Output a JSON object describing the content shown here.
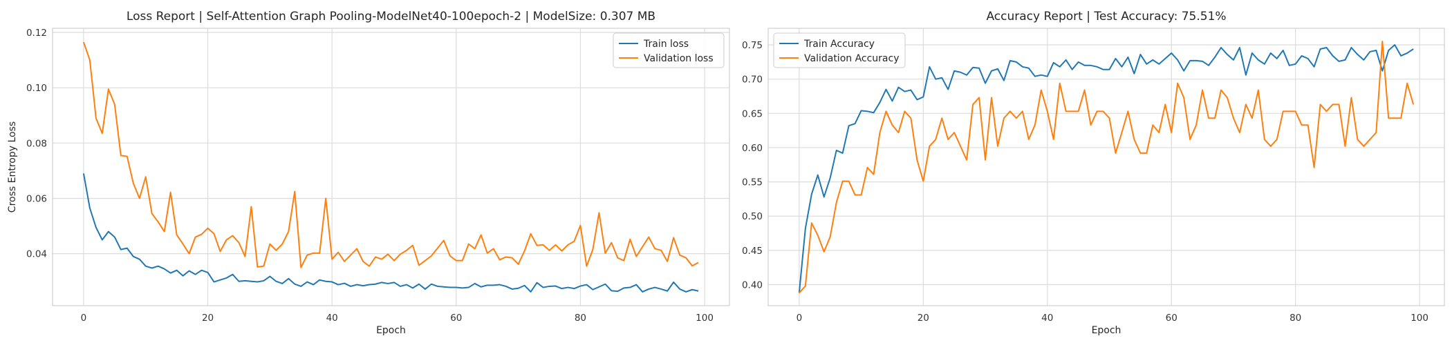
{
  "colors": {
    "train": "#1f77b4",
    "validation": "#ff7f0e",
    "grid": "#dcdcdc"
  },
  "chart_data": [
    {
      "type": "line",
      "title": "Loss Report | Self-Attention Graph Pooling-ModelNet40-100epoch-2 | ModelSize: 0.307 MB",
      "xlabel": "Epoch",
      "ylabel": "Cross Entropy Loss",
      "xlim": [
        -5,
        104
      ],
      "ylim": [
        0.0212,
        0.1215
      ],
      "xticks": [
        0,
        20,
        40,
        60,
        80,
        100
      ],
      "xtick_labels": [
        "0",
        "20",
        "40",
        "60",
        "80",
        "100"
      ],
      "yticks": [
        0.04,
        0.06,
        0.08,
        0.1,
        0.12
      ],
      "ytick_labels": [
        "0.04",
        "0.06",
        "0.08",
        "0.10",
        "0.12"
      ],
      "grid": true,
      "legend_position": "top-right",
      "series": [
        {
          "name": "Train loss",
          "color": "#1f77b4",
          "x": [
            0,
            1,
            2,
            3,
            4,
            5,
            6,
            7,
            8,
            9,
            10,
            11,
            12,
            13,
            14,
            15,
            16,
            17,
            18,
            19,
            20,
            21,
            22,
            23,
            24,
            25,
            26,
            27,
            28,
            29,
            30,
            31,
            32,
            33,
            34,
            35,
            36,
            37,
            38,
            39,
            40,
            41,
            42,
            43,
            44,
            45,
            46,
            47,
            48,
            49,
            50,
            51,
            52,
            53,
            54,
            55,
            56,
            57,
            58,
            59,
            60,
            61,
            62,
            63,
            64,
            65,
            66,
            67,
            68,
            69,
            70,
            71,
            72,
            73,
            74,
            75,
            76,
            77,
            78,
            79,
            80,
            81,
            82,
            83,
            84,
            85,
            86,
            87,
            88,
            89,
            90,
            91,
            92,
            93,
            94,
            95,
            96,
            97,
            98,
            99
          ],
          "values": [
            0.069,
            0.0565,
            0.0495,
            0.045,
            0.048,
            0.046,
            0.0415,
            0.042,
            0.039,
            0.038,
            0.0355,
            0.0348,
            0.0355,
            0.0345,
            0.033,
            0.034,
            0.032,
            0.0338,
            0.0325,
            0.034,
            0.0332,
            0.0298,
            0.0305,
            0.0312,
            0.0325,
            0.03,
            0.0302,
            0.03,
            0.0298,
            0.0302,
            0.0318,
            0.03,
            0.0292,
            0.031,
            0.029,
            0.0282,
            0.0298,
            0.0288,
            0.0305,
            0.03,
            0.0298,
            0.0288,
            0.0293,
            0.0282,
            0.0288,
            0.0284,
            0.0288,
            0.029,
            0.0296,
            0.0292,
            0.0296,
            0.0282,
            0.0288,
            0.0276,
            0.029,
            0.0272,
            0.029,
            0.0282,
            0.028,
            0.0278,
            0.0278,
            0.0276,
            0.0278,
            0.0292,
            0.028,
            0.0286,
            0.0286,
            0.0288,
            0.0282,
            0.0272,
            0.0275,
            0.0285,
            0.0262,
            0.0295,
            0.0278,
            0.0282,
            0.0283,
            0.0274,
            0.0278,
            0.0274,
            0.0283,
            0.0288,
            0.027,
            0.028,
            0.029,
            0.0266,
            0.0264,
            0.0276,
            0.0278,
            0.0288,
            0.0262,
            0.0272,
            0.0278,
            0.0272,
            0.0265,
            0.0297,
            0.0272,
            0.0262,
            0.027,
            0.0265
          ]
        },
        {
          "name": "Validation loss",
          "color": "#ff7f0e",
          "x": [
            0,
            1,
            2,
            3,
            4,
            5,
            6,
            7,
            8,
            9,
            10,
            11,
            12,
            13,
            14,
            15,
            16,
            17,
            18,
            19,
            20,
            21,
            22,
            23,
            24,
            25,
            26,
            27,
            28,
            29,
            30,
            31,
            32,
            33,
            34,
            35,
            36,
            37,
            38,
            39,
            40,
            41,
            42,
            43,
            44,
            45,
            46,
            47,
            48,
            49,
            50,
            51,
            52,
            53,
            54,
            55,
            56,
            57,
            58,
            59,
            60,
            61,
            62,
            63,
            64,
            65,
            66,
            67,
            68,
            69,
            70,
            71,
            72,
            73,
            74,
            75,
            76,
            77,
            78,
            79,
            80,
            81,
            82,
            83,
            84,
            85,
            86,
            87,
            88,
            89,
            90,
            91,
            92,
            93,
            94,
            95,
            96,
            97,
            98,
            99
          ],
          "values": [
            0.1165,
            0.11,
            0.089,
            0.0835,
            0.0995,
            0.094,
            0.0755,
            0.0752,
            0.0655,
            0.06,
            0.0678,
            0.0545,
            0.0515,
            0.048,
            0.0622,
            0.0468,
            0.0435,
            0.04,
            0.046,
            0.047,
            0.0492,
            0.0472,
            0.0408,
            0.045,
            0.0465,
            0.044,
            0.039,
            0.057,
            0.0352,
            0.0355,
            0.0435,
            0.0412,
            0.0435,
            0.048,
            0.0625,
            0.035,
            0.0395,
            0.0402,
            0.0402,
            0.06,
            0.038,
            0.0405,
            0.0372,
            0.0395,
            0.0418,
            0.0372,
            0.0355,
            0.0388,
            0.038,
            0.0398,
            0.0375,
            0.0398,
            0.0412,
            0.043,
            0.0358,
            0.0375,
            0.0392,
            0.042,
            0.0448,
            0.0392,
            0.0375,
            0.0375,
            0.0435,
            0.0418,
            0.0468,
            0.0402,
            0.0418,
            0.0378,
            0.0388,
            0.0385,
            0.0362,
            0.041,
            0.0472,
            0.043,
            0.0432,
            0.0412,
            0.0432,
            0.041,
            0.0432,
            0.0445,
            0.0502,
            0.0355,
            0.0415,
            0.0548,
            0.0402,
            0.044,
            0.0385,
            0.0375,
            0.0452,
            0.039,
            0.0425,
            0.046,
            0.0418,
            0.0412,
            0.0372,
            0.0458,
            0.0395,
            0.0385,
            0.0356,
            0.0368
          ]
        }
      ]
    },
    {
      "type": "line",
      "title": "Accuracy Report | Test Accuracy: 75.51%",
      "xlabel": "Epoch",
      "ylabel": "",
      "xlim": [
        -5,
        104
      ],
      "ylim": [
        0.3693,
        0.7742
      ],
      "xticks": [
        0,
        20,
        40,
        60,
        80,
        100
      ],
      "xtick_labels": [
        "0",
        "20",
        "40",
        "60",
        "80",
        "100"
      ],
      "yticks": [
        0.4,
        0.45,
        0.5,
        0.55,
        0.6,
        0.65,
        0.7,
        0.75
      ],
      "ytick_labels": [
        "0.40",
        "0.45",
        "0.50",
        "0.55",
        "0.60",
        "0.65",
        "0.70",
        "0.75"
      ],
      "grid": true,
      "legend_position": "top-left",
      "series": [
        {
          "name": "Train Accuracy",
          "color": "#1f77b4",
          "x": [
            0,
            1,
            2,
            3,
            4,
            5,
            6,
            7,
            8,
            9,
            10,
            11,
            12,
            13,
            14,
            15,
            16,
            17,
            18,
            19,
            20,
            21,
            22,
            23,
            24,
            25,
            26,
            27,
            28,
            29,
            30,
            31,
            32,
            33,
            34,
            35,
            36,
            37,
            38,
            39,
            40,
            41,
            42,
            43,
            44,
            45,
            46,
            47,
            48,
            49,
            50,
            51,
            52,
            53,
            54,
            55,
            56,
            57,
            58,
            59,
            60,
            61,
            62,
            63,
            64,
            65,
            66,
            67,
            68,
            69,
            70,
            71,
            72,
            73,
            74,
            75,
            76,
            77,
            78,
            79,
            80,
            81,
            82,
            83,
            84,
            85,
            86,
            87,
            88,
            89,
            90,
            91,
            92,
            93,
            94,
            95,
            96,
            97,
            98,
            99
          ],
          "values": [
            0.388,
            0.482,
            0.532,
            0.56,
            0.528,
            0.556,
            0.596,
            0.592,
            0.632,
            0.635,
            0.654,
            0.653,
            0.651,
            0.666,
            0.685,
            0.668,
            0.688,
            0.682,
            0.684,
            0.67,
            0.674,
            0.718,
            0.7,
            0.702,
            0.685,
            0.712,
            0.71,
            0.706,
            0.717,
            0.716,
            0.694,
            0.712,
            0.715,
            0.698,
            0.727,
            0.725,
            0.718,
            0.716,
            0.704,
            0.706,
            0.704,
            0.724,
            0.718,
            0.728,
            0.714,
            0.725,
            0.72,
            0.72,
            0.718,
            0.714,
            0.714,
            0.73,
            0.718,
            0.732,
            0.708,
            0.736,
            0.722,
            0.728,
            0.722,
            0.73,
            0.738,
            0.728,
            0.712,
            0.727,
            0.727,
            0.726,
            0.72,
            0.732,
            0.746,
            0.736,
            0.728,
            0.746,
            0.706,
            0.738,
            0.728,
            0.722,
            0.738,
            0.73,
            0.742,
            0.72,
            0.722,
            0.734,
            0.73,
            0.718,
            0.744,
            0.746,
            0.734,
            0.726,
            0.728,
            0.746,
            0.736,
            0.728,
            0.74,
            0.742,
            0.712,
            0.742,
            0.75,
            0.734,
            0.738,
            0.744
          ]
        },
        {
          "name": "Validation Accuracy",
          "color": "#ff7f0e",
          "x": [
            0,
            1,
            2,
            3,
            4,
            5,
            6,
            7,
            8,
            9,
            10,
            11,
            12,
            13,
            14,
            15,
            16,
            17,
            18,
            19,
            20,
            21,
            22,
            23,
            24,
            25,
            26,
            27,
            28,
            29,
            30,
            31,
            32,
            33,
            34,
            35,
            36,
            37,
            38,
            39,
            40,
            41,
            42,
            43,
            44,
            45,
            46,
            47,
            48,
            49,
            50,
            51,
            52,
            53,
            54,
            55,
            56,
            57,
            58,
            59,
            60,
            61,
            62,
            63,
            64,
            65,
            66,
            67,
            68,
            69,
            70,
            71,
            72,
            73,
            74,
            75,
            76,
            77,
            78,
            79,
            80,
            81,
            82,
            83,
            84,
            85,
            86,
            87,
            88,
            89,
            90,
            91,
            92,
            93,
            94,
            95,
            96,
            97,
            98,
            99
          ],
          "values": [
            0.388,
            0.398,
            0.49,
            0.472,
            0.448,
            0.47,
            0.52,
            0.551,
            0.551,
            0.531,
            0.531,
            0.571,
            0.561,
            0.622,
            0.653,
            0.633,
            0.622,
            0.653,
            0.643,
            0.582,
            0.551,
            0.602,
            0.612,
            0.643,
            0.612,
            0.622,
            0.602,
            0.582,
            0.663,
            0.673,
            0.582,
            0.673,
            0.602,
            0.643,
            0.653,
            0.643,
            0.653,
            0.612,
            0.633,
            0.684,
            0.653,
            0.612,
            0.694,
            0.653,
            0.653,
            0.653,
            0.684,
            0.633,
            0.653,
            0.653,
            0.643,
            0.592,
            0.622,
            0.653,
            0.612,
            0.592,
            0.592,
            0.633,
            0.622,
            0.663,
            0.622,
            0.694,
            0.673,
            0.612,
            0.633,
            0.684,
            0.643,
            0.643,
            0.684,
            0.673,
            0.643,
            0.622,
            0.663,
            0.643,
            0.684,
            0.612,
            0.602,
            0.612,
            0.653,
            0.653,
            0.653,
            0.633,
            0.633,
            0.571,
            0.663,
            0.653,
            0.663,
            0.663,
            0.602,
            0.673,
            0.612,
            0.602,
            0.612,
            0.622,
            0.755,
            0.643,
            0.643,
            0.643,
            0.694,
            0.663
          ]
        }
      ]
    }
  ]
}
